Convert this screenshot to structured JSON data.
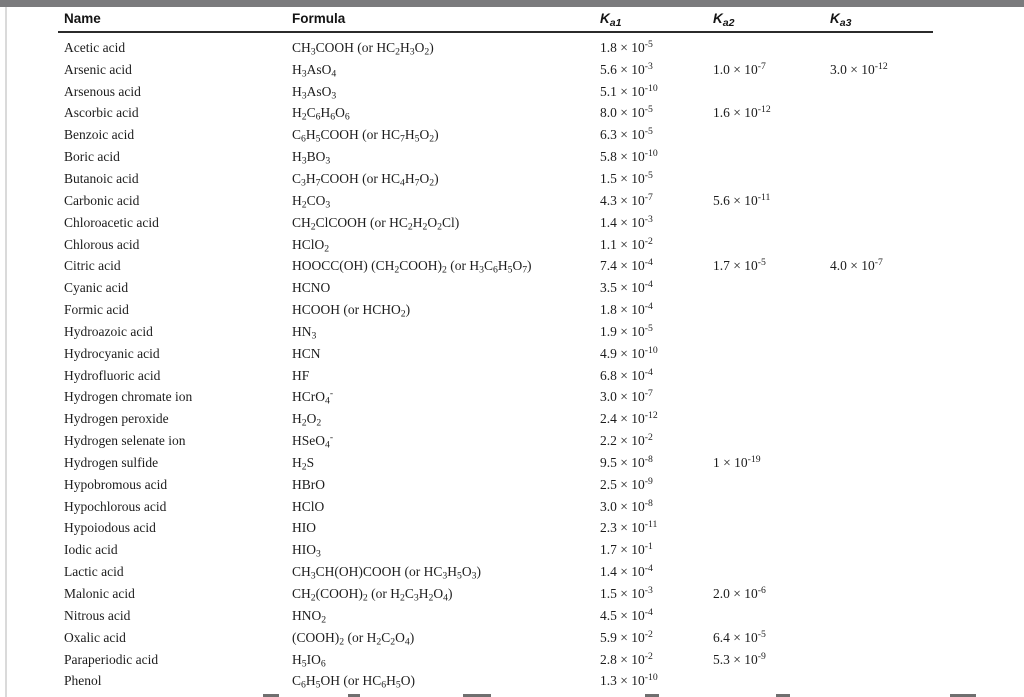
{
  "colors": {
    "top_bar": "#7b7b7d",
    "header_rule": "#2b2b2b",
    "text": "#1c1c1c",
    "page_edge_line": "#dadada"
  },
  "table": {
    "headers": {
      "name": "Name",
      "formula": "Formula",
      "ka1": "K_a1",
      "ka2": "K_a2",
      "ka3": "K_a3"
    },
    "rows": [
      {
        "name": "Acetic acid",
        "formula": "CH_3COOH (or HC_2H_3O_2)",
        "ka1": "1.8 × 10^-5",
        "ka2": "",
        "ka3": ""
      },
      {
        "name": "Arsenic acid",
        "formula": "H_3AsO_4",
        "ka1": "5.6 × 10^-3",
        "ka2": "1.0 × 10^-7",
        "ka3": "3.0 × 10^-12"
      },
      {
        "name": "Arsenous acid",
        "formula": "H_3AsO_3",
        "ka1": "5.1 × 10^-10",
        "ka2": "",
        "ka3": ""
      },
      {
        "name": "Ascorbic acid",
        "formula": "H_2C_6H_6O_6",
        "ka1": "8.0 × 10^-5",
        "ka2": "1.6 × 10^-12",
        "ka3": ""
      },
      {
        "name": "Benzoic acid",
        "formula": "C_6H_5COOH (or HC_7H_5O_2)",
        "ka1": "6.3 × 10^-5",
        "ka2": "",
        "ka3": ""
      },
      {
        "name": "Boric acid",
        "formula": "H_3BO_3",
        "ka1": "5.8 × 10^-10",
        "ka2": "",
        "ka3": ""
      },
      {
        "name": "Butanoic acid",
        "formula": "C_3H_7COOH (or HC_4H_7O_2)",
        "ka1": "1.5 × 10^-5",
        "ka2": "",
        "ka3": ""
      },
      {
        "name": "Carbonic acid",
        "formula": "H_2CO_3",
        "ka1": "4.3 × 10^-7",
        "ka2": "5.6 × 10^-11",
        "ka3": ""
      },
      {
        "name": "Chloroacetic acid",
        "formula": "CH_2ClCOOH (or HC_2H_2O_2Cl)",
        "ka1": "1.4 × 10^-3",
        "ka2": "",
        "ka3": ""
      },
      {
        "name": "Chlorous acid",
        "formula": "HClO_2",
        "ka1": "1.1 × 10^-2",
        "ka2": "",
        "ka3": ""
      },
      {
        "name": "Citric acid",
        "formula": "HOOCC(OH) (CH_2COOH)_2 (or H_3C_6H_5O_7)",
        "ka1": "7.4 × 10^-4",
        "ka2": "1.7 × 10^-5",
        "ka3": "4.0 × 10^-7"
      },
      {
        "name": "Cyanic acid",
        "formula": "HCNO",
        "ka1": "3.5 × 10^-4",
        "ka2": "",
        "ka3": ""
      },
      {
        "name": "Formic acid",
        "formula": "HCOOH (or HCHO_2)",
        "ka1": "1.8 × 10^-4",
        "ka2": "",
        "ka3": ""
      },
      {
        "name": "Hydroazoic acid",
        "formula": "HN_3",
        "ka1": "1.9 × 10^-5",
        "ka2": "",
        "ka3": ""
      },
      {
        "name": "Hydrocyanic acid",
        "formula": "HCN",
        "ka1": "4.9 × 10^-10",
        "ka2": "",
        "ka3": ""
      },
      {
        "name": "Hydrofluoric acid",
        "formula": "HF",
        "ka1": "6.8 × 10^-4",
        "ka2": "",
        "ka3": ""
      },
      {
        "name": "Hydrogen chromate ion",
        "formula": "HCrO_4^-",
        "ka1": "3.0 × 10^-7",
        "ka2": "",
        "ka3": ""
      },
      {
        "name": "Hydrogen peroxide",
        "formula": "H_2O_2",
        "ka1": "2.4 × 10^-12",
        "ka2": "",
        "ka3": ""
      },
      {
        "name": "Hydrogen selenate ion",
        "formula": "HSeO_4^-",
        "ka1": "2.2 × 10^-2",
        "ka2": "",
        "ka3": ""
      },
      {
        "name": "Hydrogen sulfide",
        "formula": "H_2S",
        "ka1": "9.5 × 10^-8",
        "ka2": "1 × 10^-19",
        "ka3": ""
      },
      {
        "name": "Hypobromous acid",
        "formula": "HBrO",
        "ka1": "2.5 × 10^-9",
        "ka2": "",
        "ka3": ""
      },
      {
        "name": "Hypochlorous acid",
        "formula": "HClO",
        "ka1": "3.0 × 10^-8",
        "ka2": "",
        "ka3": ""
      },
      {
        "name": "Hypoiodous acid",
        "formula": "HIO",
        "ka1": "2.3 × 10^-11",
        "ka2": "",
        "ka3": ""
      },
      {
        "name": "Iodic acid",
        "formula": "HIO_3",
        "ka1": "1.7 × 10^-1",
        "ka2": "",
        "ka3": ""
      },
      {
        "name": "Lactic acid",
        "formula": "CH_3CH(OH)COOH (or HC_3H_5O_3)",
        "ka1": "1.4 × 10^-4",
        "ka2": "",
        "ka3": ""
      },
      {
        "name": "Malonic acid",
        "formula": "CH_2(COOH)_2 (or H_2C_3H_2O_4)",
        "ka1": "1.5 × 10^-3",
        "ka2": "2.0 × 10^-6",
        "ka3": ""
      },
      {
        "name": "Nitrous acid",
        "formula": "HNO_2",
        "ka1": "4.5 × 10^-4",
        "ka2": "",
        "ka3": ""
      },
      {
        "name": "Oxalic acid",
        "formula": "(COOH)_2 (or H_2C_2O_4)",
        "ka1": "5.9 × 10^-2",
        "ka2": "6.4 × 10^-5",
        "ka3": ""
      },
      {
        "name": "Paraperiodic acid",
        "formula": "H_5IO_6",
        "ka1": "2.8 × 10^-2",
        "ka2": "5.3 × 10^-9",
        "ka3": ""
      },
      {
        "name": "Phenol",
        "formula": "C_6H_5OH (or HC_6H_5O)",
        "ka1": "1.3 × 10^-10",
        "ka2": "",
        "ka3": ""
      }
    ]
  }
}
